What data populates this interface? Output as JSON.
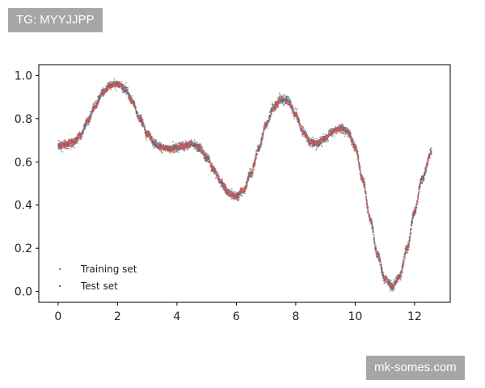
{
  "watermarks": {
    "top_left": "TG: MYYJJPP",
    "bottom_right": "mk-somes.com"
  },
  "colors": {
    "training": "#d9534f",
    "test": "#2e6b7a",
    "badge_bg": "#a6a6a6"
  },
  "chart_data": {
    "type": "scatter",
    "title": "",
    "xlabel": "",
    "ylabel": "",
    "xlim": [
      -0.65,
      13.2
    ],
    "ylim": [
      -0.05,
      1.05
    ],
    "xticks": [
      0,
      2,
      4,
      6,
      8,
      10,
      12
    ],
    "yticks": [
      0.0,
      0.2,
      0.4,
      0.6,
      0.8,
      1.0
    ],
    "xtick_labels": [
      "0",
      "2",
      "4",
      "6",
      "8",
      "10",
      "12"
    ],
    "ytick_labels": [
      "0.0",
      "0.2",
      "0.4",
      "0.6",
      "0.8",
      "1.0"
    ],
    "grid": false,
    "legend_position": "lower-left",
    "curve_x": [
      0,
      0.25,
      0.5,
      0.75,
      1.0,
      1.25,
      1.5,
      1.75,
      2.0,
      2.25,
      2.5,
      2.75,
      3.0,
      3.25,
      3.5,
      3.75,
      4.0,
      4.25,
      4.5,
      4.75,
      5.0,
      5.25,
      5.5,
      5.75,
      6.0,
      6.25,
      6.5,
      6.75,
      7.0,
      7.25,
      7.5,
      7.75,
      8.0,
      8.25,
      8.5,
      8.75,
      9.0,
      9.25,
      9.5,
      9.75,
      10.0,
      10.25,
      10.5,
      10.75,
      11.0,
      11.25,
      11.5,
      11.75,
      12.0,
      12.25,
      12.57
    ],
    "series": [
      {
        "name": "Training set",
        "color": "#d9534f",
        "points": 2000,
        "y": [
          0.675,
          0.68,
          0.69,
          0.72,
          0.79,
          0.86,
          0.92,
          0.955,
          0.96,
          0.94,
          0.88,
          0.8,
          0.73,
          0.685,
          0.665,
          0.66,
          0.665,
          0.675,
          0.68,
          0.665,
          0.62,
          0.56,
          0.5,
          0.455,
          0.44,
          0.47,
          0.55,
          0.66,
          0.77,
          0.85,
          0.89,
          0.88,
          0.82,
          0.74,
          0.69,
          0.685,
          0.71,
          0.74,
          0.755,
          0.74,
          0.67,
          0.52,
          0.34,
          0.17,
          0.06,
          0.025,
          0.07,
          0.2,
          0.37,
          0.52,
          0.645
        ]
      },
      {
        "name": "Test set",
        "color": "#2e6b7a",
        "points": 4000,
        "y": [
          0.675,
          0.68,
          0.69,
          0.72,
          0.79,
          0.86,
          0.92,
          0.955,
          0.96,
          0.94,
          0.88,
          0.8,
          0.73,
          0.685,
          0.665,
          0.66,
          0.665,
          0.675,
          0.68,
          0.665,
          0.62,
          0.56,
          0.5,
          0.455,
          0.44,
          0.47,
          0.55,
          0.66,
          0.77,
          0.85,
          0.89,
          0.88,
          0.82,
          0.74,
          0.69,
          0.685,
          0.71,
          0.74,
          0.755,
          0.74,
          0.67,
          0.52,
          0.34,
          0.17,
          0.06,
          0.025,
          0.07,
          0.2,
          0.37,
          0.52,
          0.645
        ]
      }
    ]
  }
}
